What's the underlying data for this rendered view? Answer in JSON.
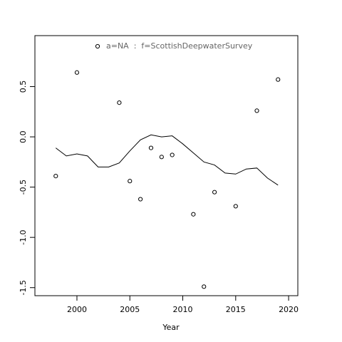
{
  "chart_data": {
    "type": "scatter",
    "x_label": "Year",
    "xlim": [
      1996.03,
      2020.87
    ],
    "ylim": [
      -1.58,
      1.007
    ],
    "xticks": [
      2000,
      2005,
      2010,
      2015,
      2020
    ],
    "yticks": [
      {
        "value": -1.5,
        "label": "-1.5"
      },
      {
        "value": -1,
        "label": "-1.0"
      },
      {
        "value": -0.5,
        "label": "-0.5"
      },
      {
        "value": 0,
        "label": "0.0"
      },
      {
        "value": 0.5,
        "label": "0.5"
      }
    ],
    "legend": "top",
    "series": [
      {
        "name": "a=NA  :  f=ScottishDeepwaterSurvey",
        "mode": "points",
        "color": "#000000",
        "x": [
          1998,
          2000,
          2004,
          2005,
          2006,
          2007,
          2008,
          2009,
          2011,
          2012,
          2013,
          2015,
          2017,
          2019
        ],
        "values": [
          -0.39,
          0.64,
          0.34,
          -0.44,
          -0.62,
          -0.11,
          -0.2,
          -0.18,
          -0.77,
          -1.49,
          -0.55,
          -0.69,
          0.26,
          0.57
        ]
      },
      {
        "mode": "line",
        "color": "#000000",
        "x": [
          1998,
          1999,
          2000,
          2001,
          2002,
          2003,
          2004,
          2005,
          2006,
          2007,
          2008,
          2009,
          2010,
          2011,
          2012,
          2013,
          2014,
          2015,
          2016,
          2017,
          2018,
          2019
        ],
        "values": [
          -0.11,
          -0.19,
          -0.17,
          -0.19,
          -0.3,
          -0.3,
          -0.26,
          -0.14,
          -0.03,
          0.02,
          0,
          0.01,
          -0.07,
          -0.16,
          -0.25,
          -0.28,
          -0.36,
          -0.37,
          -0.32,
          -0.31,
          -0.41,
          -0.48
        ]
      }
    ]
  }
}
